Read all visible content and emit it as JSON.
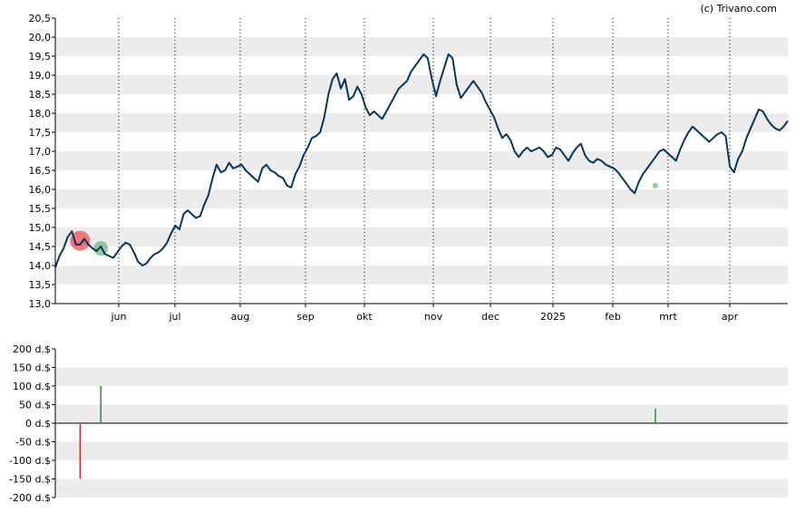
{
  "credit": "(c) Trivano.com",
  "chart_data": [
    {
      "type": "line",
      "ylim": [
        13.0,
        20.5
      ],
      "ytick_labels": [
        "20,5",
        "20,0",
        "19,5",
        "19,0",
        "18,5",
        "18,0",
        "17,5",
        "17,0",
        "16,5",
        "16,0",
        "15,5",
        "15,0",
        "14,5",
        "14,0",
        "13,5",
        "13,0"
      ],
      "xtick_labels": [
        "jun",
        "jul",
        "aug",
        "sep",
        "okt",
        "nov",
        "dec",
        "2025",
        "feb",
        "mrt",
        "apr"
      ],
      "grid": "horizontal bands + dotted monthly verticals",
      "line_color": "#0b3558",
      "series": [
        {
          "values": [
            13.95,
            14.25,
            14.45,
            14.75,
            14.9,
            14.55,
            14.55,
            14.7,
            14.55,
            14.45,
            14.38,
            14.5,
            14.3,
            14.25,
            14.2,
            14.35,
            14.5,
            14.6,
            14.55,
            14.35,
            14.1,
            14.0,
            14.05,
            14.2,
            14.3,
            14.35,
            14.45,
            14.6,
            14.85,
            15.05,
            14.95,
            15.35,
            15.45,
            15.35,
            15.25,
            15.3,
            15.6,
            15.85,
            16.3,
            16.65,
            16.45,
            16.5,
            16.7,
            16.55,
            16.6,
            16.65,
            16.5,
            16.4,
            16.3,
            16.2,
            16.55,
            16.65,
            16.5,
            16.45,
            16.35,
            16.3,
            16.1,
            16.05,
            16.4,
            16.6,
            16.9,
            17.1,
            17.35,
            17.4,
            17.5,
            17.9,
            18.5,
            18.9,
            19.05,
            18.65,
            18.9,
            18.35,
            18.45,
            18.7,
            18.5,
            18.15,
            17.95,
            18.05,
            17.95,
            17.85,
            18.05,
            18.25,
            18.45,
            18.65,
            18.75,
            18.85,
            19.1,
            19.25,
            19.4,
            19.55,
            19.45,
            18.9,
            18.45,
            18.85,
            19.2,
            19.55,
            19.45,
            18.75,
            18.4,
            18.55,
            18.7,
            18.85,
            18.7,
            18.55,
            18.3,
            18.1,
            17.9,
            17.6,
            17.35,
            17.45,
            17.3,
            17.0,
            16.85,
            17.0,
            17.1,
            17.0,
            17.05,
            17.1,
            17.0,
            16.85,
            16.9,
            17.1,
            17.05,
            16.9,
            16.75,
            16.95,
            17.1,
            17.2,
            16.9,
            16.75,
            16.7,
            16.8,
            16.75,
            16.65,
            16.6,
            16.55,
            16.45,
            16.3,
            16.15,
            16.0,
            15.9,
            16.2,
            16.4,
            16.55,
            16.7,
            16.85,
            17.0,
            17.05,
            16.95,
            16.85,
            16.75,
            17.05,
            17.3,
            17.5,
            17.65,
            17.55,
            17.45,
            17.35,
            17.25,
            17.35,
            17.45,
            17.5,
            17.4,
            16.6,
            16.45,
            16.8,
            17.0,
            17.35,
            17.6,
            17.85,
            18.1,
            18.05,
            17.85,
            17.7,
            17.6,
            17.55,
            17.65,
            17.8
          ]
        }
      ],
      "events": [
        {
          "kind": "sell",
          "x_index": 6,
          "y": 14.65
        },
        {
          "kind": "buy",
          "x_index": 11,
          "y": 14.45
        },
        {
          "kind": "buy",
          "x_index": 145,
          "y": 16.1
        }
      ]
    },
    {
      "type": "bar",
      "ylim": [
        -200,
        200
      ],
      "ytick_labels": [
        "200 d.$",
        "150 d.$",
        "100 d.$",
        "50 d.$",
        "0 d.$",
        "-50 d.$",
        "-100 d.$",
        "-150 d.$",
        "-200 d.$"
      ],
      "colors": {
        "positive": "#2e8b3e",
        "negative": "#e0202a"
      },
      "bars": [
        {
          "x_index": 6,
          "value": -150
        },
        {
          "x_index": 11,
          "value": 100
        },
        {
          "x_index": 145,
          "value": 40
        }
      ]
    }
  ]
}
